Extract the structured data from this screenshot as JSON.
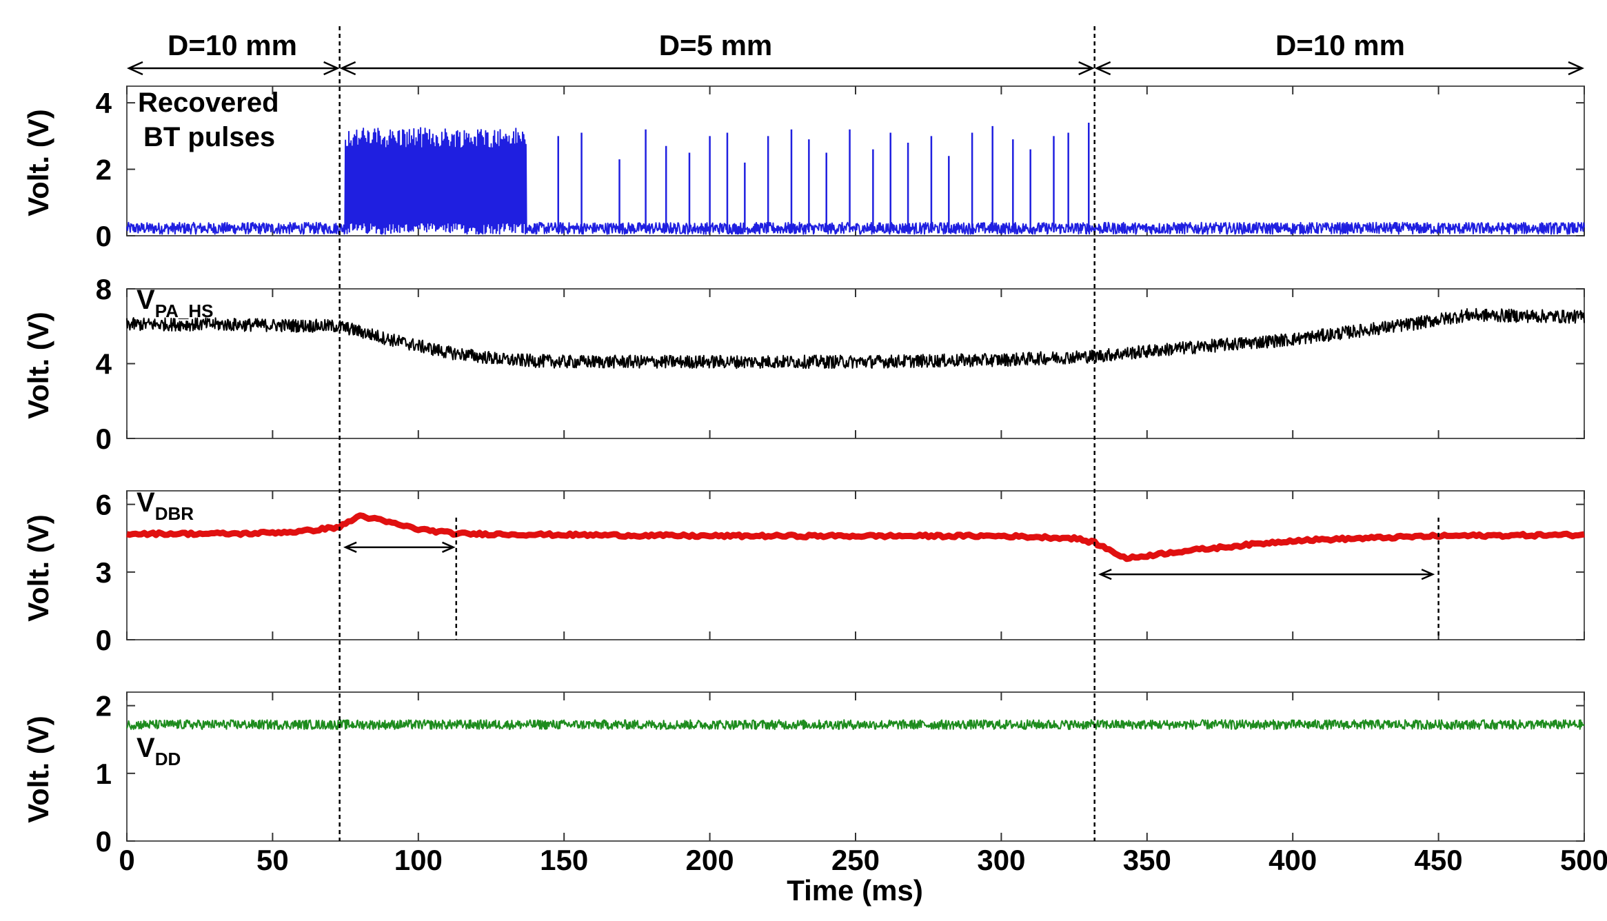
{
  "chart_data": {
    "type": "line",
    "shared_x": {
      "label": "Time (ms)",
      "range": [
        0,
        500
      ],
      "ticks": [
        0,
        50,
        100,
        150,
        200,
        250,
        300,
        350,
        400,
        450,
        500
      ]
    },
    "regions": [
      {
        "label": "D=10 mm",
        "from": 0,
        "to": 73
      },
      {
        "label": "D=5 mm",
        "from": 73,
        "to": 332
      },
      {
        "label": "D=10 mm",
        "from": 332,
        "to": 500
      }
    ],
    "region_boundaries": [
      73,
      332
    ],
    "panels": [
      {
        "id": "bt",
        "ylabel": "Volt. (V)",
        "ylim": [
          0,
          4.5
        ],
        "yticks": [
          0,
          2,
          4
        ],
        "annotation_lines": [
          "Recovered",
          "BT pulses"
        ],
        "color": "#1f1fe0",
        "series": {
          "name": "Recovered BT pulses",
          "baseline_noise": 0.35,
          "dense_burst": {
            "from": 75,
            "to": 137,
            "amplitude": 3.1
          },
          "sparse_pulse_times": [
            148,
            156,
            169,
            178,
            185,
            193,
            200,
            206,
            212,
            220,
            228,
            234,
            240,
            248,
            256,
            262,
            268,
            276,
            282,
            290,
            297,
            304,
            310,
            318,
            323,
            330
          ],
          "sparse_pulse_heights": [
            3.0,
            3.1,
            2.3,
            3.2,
            2.7,
            2.5,
            3.0,
            3.1,
            2.2,
            3.0,
            3.2,
            2.9,
            2.5,
            3.2,
            2.6,
            3.1,
            2.8,
            3.0,
            2.4,
            3.1,
            3.3,
            2.9,
            2.6,
            3.0,
            3.1,
            3.4
          ]
        }
      },
      {
        "id": "vpa",
        "ylabel": "Volt. (V)",
        "ylim": [
          0,
          8
        ],
        "yticks": [
          0,
          4,
          8
        ],
        "label_main": "V",
        "label_sub": "PA_HS",
        "color": "#000000",
        "series": {
          "name": "VPA_HS",
          "t": [
            0,
            30,
            73,
            90,
            110,
            130,
            150,
            200,
            250,
            300,
            332,
            360,
            400,
            440,
            460,
            500
          ],
          "v": [
            6.1,
            6.1,
            6.0,
            5.3,
            4.6,
            4.2,
            4.1,
            4.1,
            4.1,
            4.2,
            4.4,
            4.8,
            5.3,
            6.1,
            6.6,
            6.5
          ]
        }
      },
      {
        "id": "vdbr",
        "ylabel": "Volt. (V)",
        "ylim": [
          0,
          6.6
        ],
        "yticks": [
          0,
          3,
          6
        ],
        "label_main": "V",
        "label_sub": "DBR",
        "color": "#e01010",
        "series": {
          "name": "VDBR",
          "t": [
            0,
            40,
            60,
            73,
            80,
            90,
            100,
            113,
            150,
            200,
            250,
            300,
            325,
            332,
            343,
            360,
            400,
            450,
            500
          ],
          "v": [
            4.7,
            4.7,
            4.8,
            5.0,
            5.5,
            5.2,
            4.9,
            4.7,
            4.65,
            4.6,
            4.6,
            4.6,
            4.5,
            4.3,
            3.6,
            3.9,
            4.4,
            4.6,
            4.65
          ]
        },
        "spans": [
          {
            "from": 75,
            "to": 112,
            "at": 4.1
          },
          {
            "from": 334,
            "to": 448,
            "at": 2.9
          }
        ],
        "marker_lines": [
          113,
          450
        ]
      },
      {
        "id": "vdd",
        "ylabel": "Volt. (V)",
        "ylim": [
          0,
          2.2
        ],
        "yticks": [
          0,
          1,
          2
        ],
        "label_main": "V",
        "label_sub": "DD",
        "color": "#1e8c1e",
        "series": {
          "name": "VDD",
          "t": [
            0,
            500
          ],
          "v": [
            1.72,
            1.72
          ],
          "noise": 0.07
        }
      }
    ]
  }
}
